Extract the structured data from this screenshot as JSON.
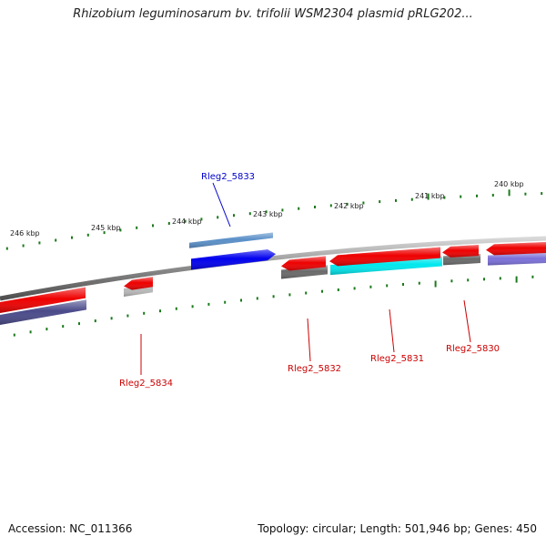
{
  "title": "Rhizobium leguminosarum bv. trifolii WSM2304 plasmid pRLG202...",
  "footer": {
    "accession": "Accession: NC_011366",
    "summary": "Topology: circular; Length: 501,946 bp; Genes: 450"
  },
  "colors": {
    "backbone": "#8a8a8a",
    "tick": "#1a7a1a",
    "forward_label": "#0000cc",
    "reverse_label": "#cc0000"
  },
  "ticks": [
    {
      "label": "246 kbp"
    },
    {
      "label": "245 kbp"
    },
    {
      "label": "244 kbp"
    },
    {
      "label": "243 kbp"
    },
    {
      "label": "242 kbp"
    },
    {
      "label": "241 kbp"
    },
    {
      "label": "240 kbp"
    }
  ],
  "genes": [
    {
      "name": "Rleg2_5833",
      "strand": "forward",
      "color": "#0000ee",
      "labeled": true
    },
    {
      "name": "Rleg2_5834",
      "strand": "reverse",
      "color": "#ee0000",
      "labeled": true
    },
    {
      "name": "Rleg2_5832",
      "strand": "reverse",
      "color": "#ee0000",
      "labeled": true
    },
    {
      "name": "Rleg2_5831",
      "strand": "reverse",
      "color": "#ee0000",
      "labeled": true
    },
    {
      "name": "Rleg2_5830",
      "strand": "reverse",
      "color": "#ee0000",
      "labeled": true
    },
    {
      "name": "",
      "strand": "reverse",
      "color": "#ee0000",
      "labeled": false
    },
    {
      "name": "",
      "strand": "reverse",
      "color": "#ee0000",
      "labeled": false
    },
    {
      "name": "",
      "strand": "reverse",
      "color": "#ee0000",
      "labeled": false
    }
  ],
  "features": [
    {
      "color": "#5a8fc8"
    },
    {
      "color": "#4a4a8a"
    },
    {
      "color": "#b8b8b8"
    },
    {
      "color": "#6a6a6a"
    },
    {
      "color": "#00e8ee"
    },
    {
      "color": "#6a6a6a"
    },
    {
      "color": "#7a70d8"
    }
  ]
}
